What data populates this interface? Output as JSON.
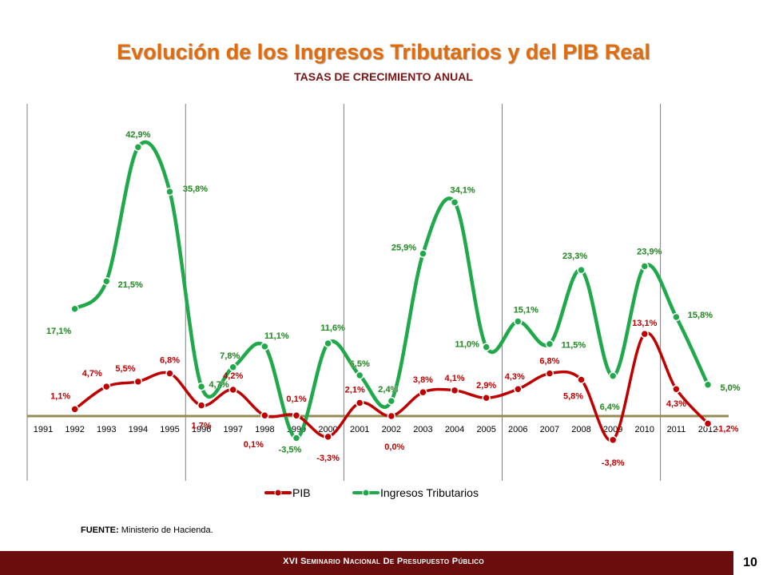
{
  "header": {
    "title": "Evolución  de los Ingresos Tributarios y del PIB Real",
    "subtitle": "TASAS DE CRECIMIENTO ANUAL"
  },
  "colors": {
    "title": "#e36c09",
    "subtitle": "#7b1515",
    "pib": "#c00000",
    "ingresos": "#1fa94a",
    "ingresos_label": "#2e8b2e",
    "baseline": "#948a54",
    "footer_bg": "#6b0d0d"
  },
  "chart_data": {
    "type": "line",
    "categories": [
      "1991",
      "1992",
      "1993",
      "1994",
      "1995",
      "1996",
      "1997",
      "1998",
      "1999",
      "2000",
      "2001",
      "2002",
      "2003",
      "2004",
      "2005",
      "2006",
      "2007",
      "2008",
      "2009",
      "2010",
      "2011",
      "2012"
    ],
    "series": [
      {
        "name": "PIB",
        "color": "#c00000",
        "values": [
          null,
          1.1,
          4.7,
          5.5,
          6.8,
          1.7,
          4.2,
          0.1,
          0.1,
          -3.3,
          2.1,
          0.0,
          3.8,
          4.1,
          2.9,
          4.3,
          6.8,
          5.8,
          -3.8,
          13.1,
          4.3,
          -1.2
        ],
        "labels": [
          "",
          "1,1%",
          "4,7%",
          "5,5%",
          "6,8%",
          "1,7%",
          "4,2%",
          "0,1%",
          "0,1%",
          "-3,3%",
          "2,1%",
          "0,0%",
          "3,8%",
          "4,1%",
          "2,9%",
          "4,3%",
          "6,8%",
          "5,8%",
          "-3,8%",
          "13,1%",
          "4,3%",
          "-1,2%"
        ]
      },
      {
        "name": "Ingresos Tributarios",
        "color": "#1fa94a",
        "values": [
          null,
          17.1,
          21.5,
          42.9,
          35.8,
          4.7,
          7.8,
          11.1,
          -3.5,
          11.6,
          6.5,
          2.4,
          25.9,
          34.1,
          11.0,
          15.1,
          11.5,
          23.3,
          6.4,
          23.9,
          15.8,
          5.0
        ],
        "labels": [
          "",
          "17,1%",
          "21,5%",
          "42,9%",
          "35,8%",
          "4,7%",
          "7,8%",
          "11,1%",
          "-3,5%",
          "11,6%",
          "6,5%",
          "2,4%",
          "25,9%",
          "34,1%",
          "11,0%",
          "15,1%",
          "11,5%",
          "23,3%",
          "6,4%",
          "23,9%",
          "15,8%",
          "5,0%"
        ]
      }
    ],
    "period_dividers_after": [
      "1995",
      "2000",
      "2005",
      "2010"
    ]
  },
  "footer": {
    "source_label": "FUENTE:",
    "source_text": " Ministerio de Hacienda.",
    "seminar": "XVI Seminario Nacional De Presupuesto Público",
    "page_number": "10"
  }
}
